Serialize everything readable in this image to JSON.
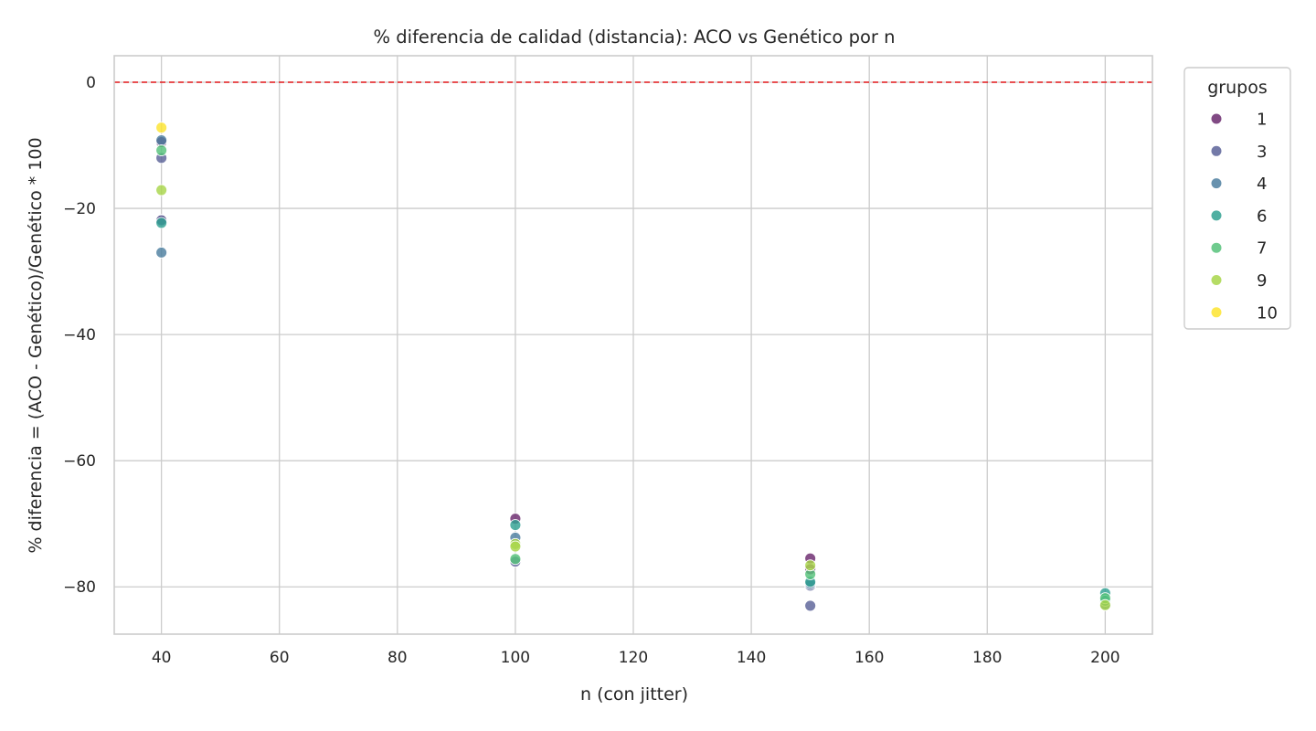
{
  "chart_data": {
    "type": "scatter",
    "title": "% diferencia de calidad (distancia): ACO vs Genético por n",
    "xlabel": "n (con jitter)",
    "ylabel": "% diferencia = (ACO - Genético)/Genético * 100",
    "xlim": [
      32,
      208
    ],
    "ylim": [
      -87.5,
      4.2
    ],
    "xticks": [
      40,
      60,
      80,
      100,
      120,
      140,
      160,
      180,
      200
    ],
    "yticks": [
      0,
      -20,
      -40,
      -60,
      -80
    ],
    "xtick_labels": [
      "40",
      "60",
      "80",
      "100",
      "120",
      "140",
      "160",
      "180",
      "200"
    ],
    "ytick_labels": [
      "0",
      "−20",
      "−40",
      "−60",
      "−80"
    ],
    "grid": true,
    "reference_line": {
      "y": 0,
      "color": "#e41a1c",
      "style": "dashed"
    },
    "legend": {
      "title": "grupos",
      "position": "outside-right-top"
    },
    "series": [
      {
        "name": "1",
        "color": "#6b2a6e",
        "points": [
          [
            40,
            -9.5
          ],
          [
            40,
            -21.8
          ],
          [
            100,
            -69.2
          ],
          [
            150,
            -75.5
          ],
          [
            150,
            -77.2
          ]
        ]
      },
      {
        "name": "3",
        "color": "#5c6399",
        "points": [
          [
            40,
            -12.0
          ],
          [
            40,
            -21.9
          ],
          [
            100,
            -76.0
          ],
          [
            150,
            -83.0
          ],
          [
            150,
            -79.8
          ]
        ]
      },
      {
        "name": "4",
        "color": "#4d7fa0",
        "points": [
          [
            40,
            -9.2
          ],
          [
            40,
            -27.0
          ],
          [
            100,
            -72.2
          ],
          [
            150,
            -79.5
          ],
          [
            200,
            -82.8
          ]
        ]
      },
      {
        "name": "6",
        "color": "#31a192",
        "points": [
          [
            40,
            -22.3
          ],
          [
            100,
            -70.2
          ],
          [
            150,
            -79.2
          ],
          [
            200,
            -81.0
          ],
          [
            200,
            -82.2
          ]
        ]
      },
      {
        "name": "7",
        "color": "#56c27a",
        "points": [
          [
            40,
            -10.8
          ],
          [
            100,
            -75.6
          ],
          [
            150,
            -78.0
          ],
          [
            200,
            -81.8
          ]
        ]
      },
      {
        "name": "9",
        "color": "#a8d64a",
        "points": [
          [
            40,
            -17.1
          ],
          [
            100,
            -73.2
          ],
          [
            100,
            -73.6
          ],
          [
            150,
            -76.6
          ],
          [
            200,
            -82.9
          ]
        ]
      },
      {
        "name": "10",
        "color": "#fde42f",
        "points": [
          [
            40,
            -7.2
          ]
        ]
      }
    ]
  }
}
